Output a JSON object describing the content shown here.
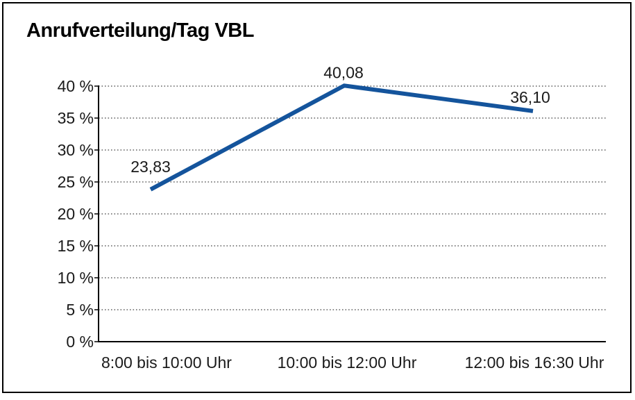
{
  "chart_data": {
    "type": "line",
    "title": "Anrufverteilung/Tag VBL",
    "categories": [
      "8:00 bis 10:00 Uhr",
      "10:00 bis 12:00 Uhr",
      "12:00 bis 16:30 Uhr"
    ],
    "values": [
      23.83,
      40.08,
      36.1
    ],
    "data_labels": [
      "23,83",
      "40,08",
      "36,10"
    ],
    "y_tick_labels": [
      "0 %",
      "5 %",
      "10 %",
      "15 %",
      "20 %",
      "25 %",
      "30 %",
      "35 %",
      "40 %"
    ],
    "ylim": [
      0,
      40
    ],
    "y_step": 5,
    "xlabel": "",
    "ylabel": "",
    "grid": "dotted-horizontal",
    "legend": "none",
    "line_color": "#14549C",
    "axis_color": "#000000",
    "gridline_color": "#404040",
    "text_color": "#1a1a1a"
  }
}
